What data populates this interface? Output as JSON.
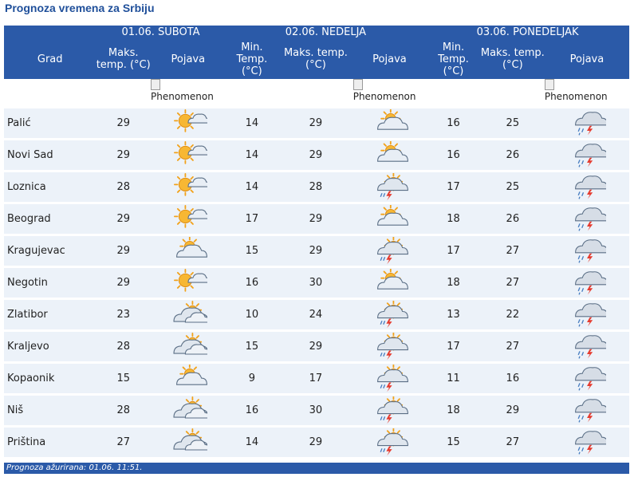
{
  "page_title": "Prognoza vremena za Srbiju",
  "days": [
    {
      "date_label": "01.06. SUBOTA"
    },
    {
      "date_label": "02.06. NEDELJA"
    },
    {
      "date_label": "03.06. PONEDELJAK"
    }
  ],
  "headers": {
    "grad": "Grad",
    "max_temp": "Maks. temp. (°C)",
    "min_temp": "Min. Temp. (°C)",
    "max_temp2": "Maks. temp. (°C)",
    "pojava": "Pojava"
  },
  "phenomenon_alt": "Phenomenon",
  "rows": [
    {
      "city": "Palić",
      "d1_max": "29",
      "d1_icon": "sunny-partly-cloudy-icon",
      "d2_min": "14",
      "d2_max": "29",
      "d2_icon": "partly-cloudy-sun-icon",
      "d3_min": "16",
      "d3_max": "25",
      "d3_icon": "thunderstorm-rain-icon"
    },
    {
      "city": "Novi Sad",
      "d1_max": "29",
      "d1_icon": "sunny-partly-cloudy-icon",
      "d2_min": "14",
      "d2_max": "29",
      "d2_icon": "partly-cloudy-sun-icon",
      "d3_min": "16",
      "d3_max": "26",
      "d3_icon": "thunderstorm-rain-icon"
    },
    {
      "city": "Loznica",
      "d1_max": "28",
      "d1_icon": "sunny-partly-cloudy-icon",
      "d2_min": "14",
      "d2_max": "28",
      "d2_icon": "sun-thunderstorm-icon",
      "d3_min": "17",
      "d3_max": "25",
      "d3_icon": "thunderstorm-rain-icon"
    },
    {
      "city": "Beograd",
      "d1_max": "29",
      "d1_icon": "sunny-partly-cloudy-icon",
      "d2_min": "17",
      "d2_max": "29",
      "d2_icon": "partly-cloudy-sun-icon",
      "d3_min": "18",
      "d3_max": "26",
      "d3_icon": "thunderstorm-rain-icon"
    },
    {
      "city": "Kragujevac",
      "d1_max": "29",
      "d1_icon": "partly-cloudy-sun-icon",
      "d2_min": "15",
      "d2_max": "29",
      "d2_icon": "sun-thunderstorm-icon",
      "d3_min": "17",
      "d3_max": "27",
      "d3_icon": "thunderstorm-rain-icon"
    },
    {
      "city": "Negotin",
      "d1_max": "29",
      "d1_icon": "sunny-partly-cloudy-icon",
      "d2_min": "16",
      "d2_max": "30",
      "d2_icon": "partly-cloudy-sun-icon",
      "d3_min": "18",
      "d3_max": "27",
      "d3_icon": "thunderstorm-rain-icon"
    },
    {
      "city": "Zlatibor",
      "d1_max": "23",
      "d1_icon": "cloudy-sun-icon",
      "d2_min": "10",
      "d2_max": "24",
      "d2_icon": "sun-thunderstorm-icon",
      "d3_min": "13",
      "d3_max": "22",
      "d3_icon": "thunderstorm-rain-icon"
    },
    {
      "city": "Kraljevo",
      "d1_max": "28",
      "d1_icon": "cloudy-sun-icon",
      "d2_min": "15",
      "d2_max": "29",
      "d2_icon": "sun-thunderstorm-icon",
      "d3_min": "17",
      "d3_max": "27",
      "d3_icon": "thunderstorm-rain-icon"
    },
    {
      "city": "Kopaonik",
      "d1_max": "15",
      "d1_icon": "partly-cloudy-sun-icon",
      "d2_min": "9",
      "d2_max": "17",
      "d2_icon": "sun-thunderstorm-icon",
      "d3_min": "11",
      "d3_max": "16",
      "d3_icon": "thunderstorm-rain-icon"
    },
    {
      "city": "Niš",
      "d1_max": "28",
      "d1_icon": "cloudy-sun-icon",
      "d2_min": "16",
      "d2_max": "30",
      "d2_icon": "sun-thunderstorm-icon",
      "d3_min": "18",
      "d3_max": "29",
      "d3_icon": "thunderstorm-rain-icon"
    },
    {
      "city": "Priština",
      "d1_max": "27",
      "d1_icon": "cloudy-sun-icon",
      "d2_min": "14",
      "d2_max": "29",
      "d2_icon": "sun-thunderstorm-icon",
      "d3_min": "15",
      "d3_max": "27",
      "d3_icon": "thunderstorm-rain-icon"
    }
  ],
  "footer": {
    "label": "Prognoza ažurirana:",
    "value": "01.06. 11:51."
  }
}
